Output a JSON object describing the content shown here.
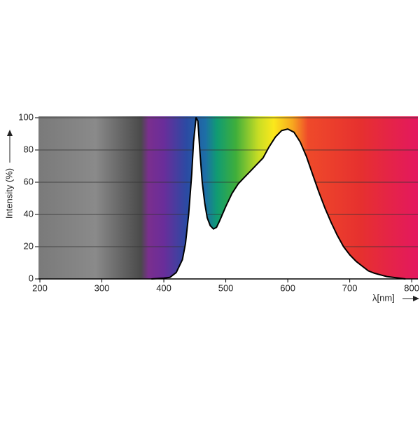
{
  "chart_data": {
    "type": "line",
    "y_label": "Intensity (%)",
    "x_label": "λ[nm]",
    "x": [
      380,
      400,
      410,
      420,
      430,
      435,
      440,
      445,
      448,
      452,
      455,
      458,
      462,
      466,
      470,
      475,
      480,
      485,
      490,
      500,
      510,
      520,
      530,
      540,
      550,
      560,
      570,
      580,
      590,
      600,
      610,
      620,
      630,
      640,
      650,
      660,
      670,
      680,
      690,
      700,
      710,
      720,
      730,
      740,
      750,
      760,
      770,
      780,
      790
    ],
    "series": [
      {
        "color": "#000000",
        "values": [
          0,
          0.5,
          1,
          4,
          12,
          22,
          40,
          65,
          85,
          100,
          98,
          80,
          60,
          47,
          38,
          33,
          31,
          32,
          36,
          45,
          53,
          59,
          63,
          67,
          71,
          75,
          82,
          88,
          92,
          93,
          91,
          85,
          76,
          65,
          54,
          44,
          35,
          27,
          20,
          15,
          11,
          8,
          5,
          3.5,
          2.5,
          1.5,
          1,
          0.5,
          0
        ]
      }
    ],
    "xlim": [
      200,
      810
    ],
    "xticks": [
      200,
      300,
      400,
      500,
      600,
      700,
      800
    ],
    "ylim": [
      0,
      100
    ],
    "yticks": [
      0,
      20,
      40,
      60,
      80,
      100
    ],
    "grid": true
  }
}
